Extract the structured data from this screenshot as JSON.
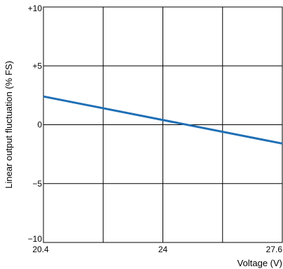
{
  "chart_data": {
    "type": "line",
    "xlabel": "Voltage (V)",
    "ylabel": "Linear output fluctuation (% FS)",
    "xlim": [
      20.4,
      27.6
    ],
    "ylim": [
      -10,
      10
    ],
    "x_gridlines": [
      20.4,
      22.2,
      24,
      25.8,
      27.6
    ],
    "y_gridlines": [
      -10,
      -5,
      0,
      5,
      10
    ],
    "x_ticks": [
      {
        "value": 20.4,
        "label": "20.4"
      },
      {
        "value": 24,
        "label": "24"
      },
      {
        "value": 27.6,
        "label": "27.6"
      }
    ],
    "y_ticks": [
      {
        "value": 10,
        "label": "+10"
      },
      {
        "value": 5,
        "label": "+5"
      },
      {
        "value": 0,
        "label": "0"
      },
      {
        "value": -5,
        "label": "−5"
      },
      {
        "value": -10,
        "label": "−10"
      }
    ],
    "grid": true,
    "series": [
      {
        "color": "#1f6fb5",
        "x": [
          20.4,
          27.6
        ],
        "y": [
          2.4,
          -1.6
        ]
      }
    ]
  }
}
